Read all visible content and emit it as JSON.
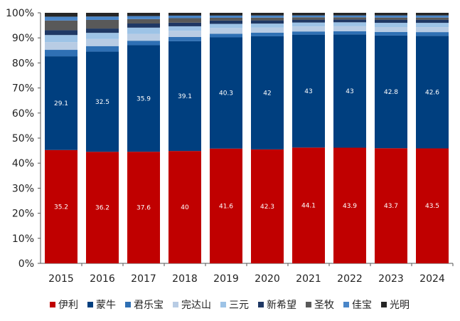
{
  "chart_data": {
    "type": "bar",
    "stacked": true,
    "percent_stacked": true,
    "categories": [
      "2015",
      "2016",
      "2017",
      "2018",
      "2019",
      "2020",
      "2021",
      "2022",
      "2023",
      "2024"
    ],
    "y_ticks": [
      "0%",
      "10%",
      "20%",
      "30%",
      "40%",
      "50%",
      "60%",
      "70%",
      "80%",
      "90%",
      "100%"
    ],
    "ylim": [
      0,
      100
    ],
    "grid": false,
    "legend_position": "bottom",
    "series": [
      {
        "name": "伊利",
        "color": "#c00000",
        "values": [
          35.2,
          36.2,
          37.6,
          40,
          41.6,
          42.3,
          44.1,
          43.9,
          43.7,
          43.5
        ],
        "labels": [
          "35.2",
          "36.2",
          "37.6",
          "40",
          "41.6",
          "42.3",
          "44.1",
          "43.9",
          "43.7",
          "43.5"
        ]
      },
      {
        "name": "蒙牛",
        "color": "#003f7f",
        "values": [
          29.1,
          32.5,
          35.9,
          39.1,
          40.3,
          42,
          43,
          43,
          42.8,
          42.6
        ],
        "labels": [
          "29.1",
          "32.5",
          "35.9",
          "39.1",
          "40.3",
          "42",
          "43",
          "43",
          "42.8",
          "42.6"
        ]
      },
      {
        "name": "君乐宝",
        "color": "#2f70b4",
        "values": [
          2.0,
          1.8,
          1.5,
          1.5,
          1.3,
          1.3,
          1.2,
          1.2,
          1.3,
          1.4
        ]
      },
      {
        "name": "完达山",
        "color": "#b8cce4",
        "values": [
          2.4,
          2.3,
          2.3,
          2.2,
          2.1,
          1.9,
          1.9,
          1.9,
          1.9,
          1.9
        ]
      },
      {
        "name": "三元",
        "color": "#9dc3e6",
        "values": [
          2.2,
          2.0,
          2.1,
          1.6,
          1.5,
          1.5,
          1.5,
          1.5,
          1.6,
          1.6
        ]
      },
      {
        "name": "新希望",
        "color": "#1f3864",
        "values": [
          1.5,
          1.4,
          1.4,
          1.3,
          1.2,
          1.2,
          1.1,
          1.1,
          1.2,
          1.2
        ]
      },
      {
        "name": "圣牧",
        "color": "#595959",
        "values": [
          3.0,
          2.8,
          1.5,
          1.6,
          1.0,
          1.0,
          0.9,
          0.8,
          0.8,
          0.8
        ]
      },
      {
        "name": "佳宝",
        "color": "#4a86c8",
        "values": [
          1.2,
          1.1,
          1.0,
          0.9,
          0.8,
          0.8,
          0.7,
          0.7,
          0.8,
          0.8
        ]
      },
      {
        "name": "光明",
        "color": "#262626",
        "values": [
          1.2,
          1.2,
          1.1,
          1.0,
          1.0,
          1.0,
          1.0,
          1.0,
          1.0,
          1.0
        ]
      }
    ]
  }
}
